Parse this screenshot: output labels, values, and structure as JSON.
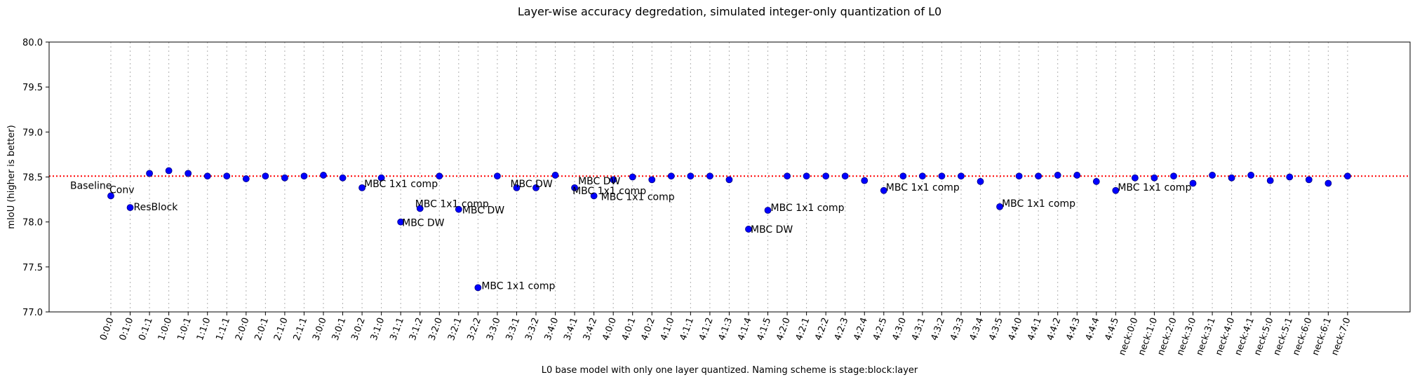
{
  "chart_data": {
    "type": "scatter",
    "title": "Layer-wise accuracy degredation, simulated integer-only quantization of L0",
    "xlabel": "L0 base model with only one layer quantized. Naming scheme is stage:block:layer",
    "ylabel": "mIoU (higher is better)",
    "ylim": [
      77.0,
      80.0
    ],
    "yticks": [
      "77.0",
      "77.5",
      "78.0",
      "78.5",
      "79.0",
      "79.5",
      "80.0"
    ],
    "grid": "vertical dotted",
    "baseline": {
      "value": 78.51,
      "color": "#ff0000",
      "style": "dotted"
    },
    "marker_color": "#0000ff",
    "categories": [
      "0:0:0",
      "0:1:0",
      "0:1:1",
      "1:0:0",
      "1:0:1",
      "1:1:0",
      "1:1:1",
      "2:0:0",
      "2:0:1",
      "2:1:0",
      "2:1:1",
      "3:0:0",
      "3:0:1",
      "3:0:2",
      "3:1:0",
      "3:1:1",
      "3:1:2",
      "3:2:0",
      "3:2:1",
      "3:2:2",
      "3:3:0",
      "3:3:1",
      "3:3:2",
      "3:4:0",
      "3:4:1",
      "3:4:2",
      "4:0:0",
      "4:0:1",
      "4:0:2",
      "4:1:0",
      "4:1:1",
      "4:1:2",
      "4:1:3",
      "4:1:4",
      "4:1:5",
      "4:2:0",
      "4:2:1",
      "4:2:2",
      "4:2:3",
      "4:2:4",
      "4:2:5",
      "4:3:0",
      "4:3:1",
      "4:3:2",
      "4:3:3",
      "4:3:4",
      "4:3:5",
      "4:4:0",
      "4:4:1",
      "4:4:2",
      "4:4:3",
      "4:4:4",
      "4:4:5",
      "neck:0:0",
      "neck:1:0",
      "neck:2:0",
      "neck:3:0",
      "neck:3:1",
      "neck:4:0",
      "neck:4:1",
      "neck:5:0",
      "neck:5:1",
      "neck:6:0",
      "neck:6:1",
      "neck:7:0"
    ],
    "values": [
      78.29,
      78.16,
      78.54,
      78.57,
      78.54,
      78.51,
      78.51,
      78.48,
      78.51,
      78.49,
      78.51,
      78.52,
      78.49,
      78.38,
      78.49,
      78.0,
      78.15,
      78.51,
      78.14,
      77.27,
      78.51,
      78.38,
      78.38,
      78.52,
      78.38,
      78.29,
      78.47,
      78.5,
      78.47,
      78.51,
      78.51,
      78.51,
      78.47,
      77.92,
      78.13,
      78.51,
      78.51,
      78.51,
      78.51,
      78.46,
      78.35,
      78.51,
      78.51,
      78.51,
      78.51,
      78.45,
      78.17,
      78.51,
      78.51,
      78.52,
      78.52,
      78.45,
      78.35,
      78.49,
      78.49,
      78.51,
      78.43,
      78.52,
      78.49,
      78.52,
      78.46,
      78.5,
      78.47,
      78.43,
      78.51
    ],
    "annotations": [
      {
        "index": 0,
        "text": "Baseline",
        "dx": -58,
        "dy": -10
      },
      {
        "index": 0,
        "text": "Conv",
        "dx": -2,
        "dy": -4
      },
      {
        "index": 1,
        "text": "ResBlock",
        "dx": 5,
        "dy": 4
      },
      {
        "index": 13,
        "text": "MBC 1x1 comp",
        "dx": 3,
        "dy": -1
      },
      {
        "index": 15,
        "text": "MBC DW",
        "dx": 2,
        "dy": 6
      },
      {
        "index": 16,
        "text": "MBC 1x1 comp",
        "dx": -7,
        "dy": -2
      },
      {
        "index": 18,
        "text": "MBC DW",
        "dx": 5,
        "dy": 6
      },
      {
        "index": 19,
        "text": "MBC 1x1 comp",
        "dx": 5,
        "dy": 2
      },
      {
        "index": 21,
        "text": "MBC DW",
        "dx": -9,
        "dy": -1
      },
      {
        "index": 24,
        "text": "MBC DW",
        "dx": 5,
        "dy": -5
      },
      {
        "index": 24,
        "text": "MBC 1x1 comp",
        "dx": -3,
        "dy": 9
      },
      {
        "index": 25,
        "text": "MBC 1x1 comp",
        "dx": 10,
        "dy": 6
      },
      {
        "index": 33,
        "text": "MBC DW",
        "dx": 3,
        "dy": 5
      },
      {
        "index": 34,
        "text": "MBC 1x1 comp",
        "dx": 4,
        "dy": 1
      },
      {
        "index": 40,
        "text": "MBC 1x1 comp",
        "dx": 3,
        "dy": 0
      },
      {
        "index": 46,
        "text": "MBC 1x1 comp",
        "dx": 3,
        "dy": 0
      },
      {
        "index": 52,
        "text": "MBC 1x1 comp",
        "dx": 3,
        "dy": 0
      }
    ]
  }
}
